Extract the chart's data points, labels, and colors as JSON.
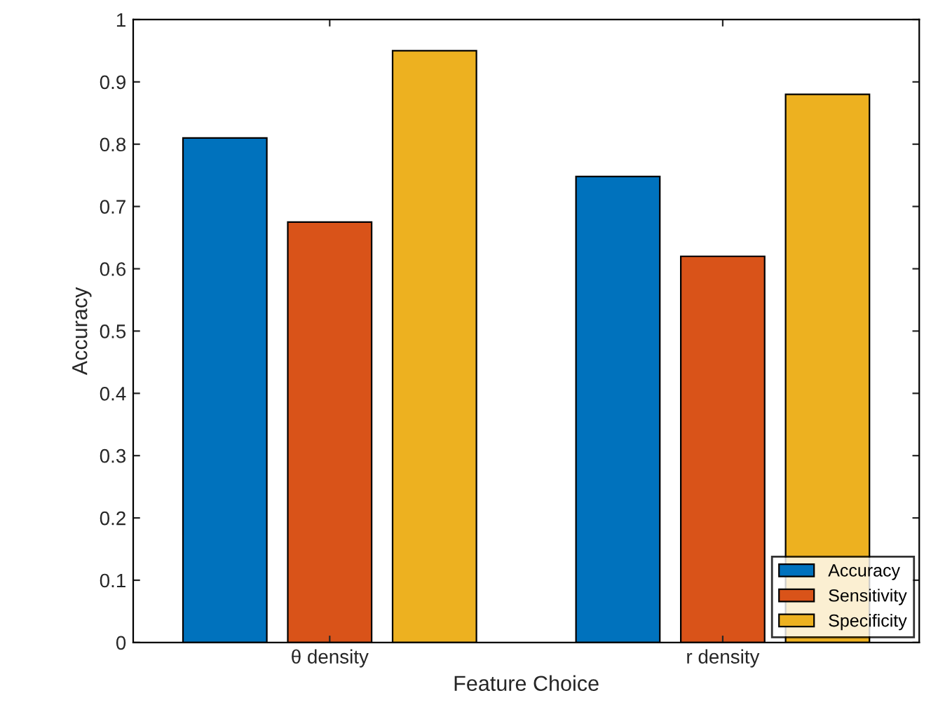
{
  "chart_data": {
    "type": "bar",
    "xlabel": "Feature Choice",
    "ylabel": "Accuracy",
    "categories": [
      "θ density",
      "r density"
    ],
    "series": [
      {
        "name": "Accuracy",
        "color": "#0072bd",
        "values": [
          0.81,
          0.748
        ]
      },
      {
        "name": "Sensitivity",
        "color": "#d95319",
        "values": [
          0.675,
          0.62
        ]
      },
      {
        "name": "Specificity",
        "color": "#edb120",
        "values": [
          0.95,
          0.88
        ]
      }
    ],
    "ylim": [
      0,
      1
    ],
    "yticks": [
      0,
      0.1,
      0.2,
      0.3,
      0.4,
      0.5,
      0.6,
      0.7,
      0.8,
      0.9,
      1
    ],
    "grid": false,
    "legend": "bottom right"
  }
}
